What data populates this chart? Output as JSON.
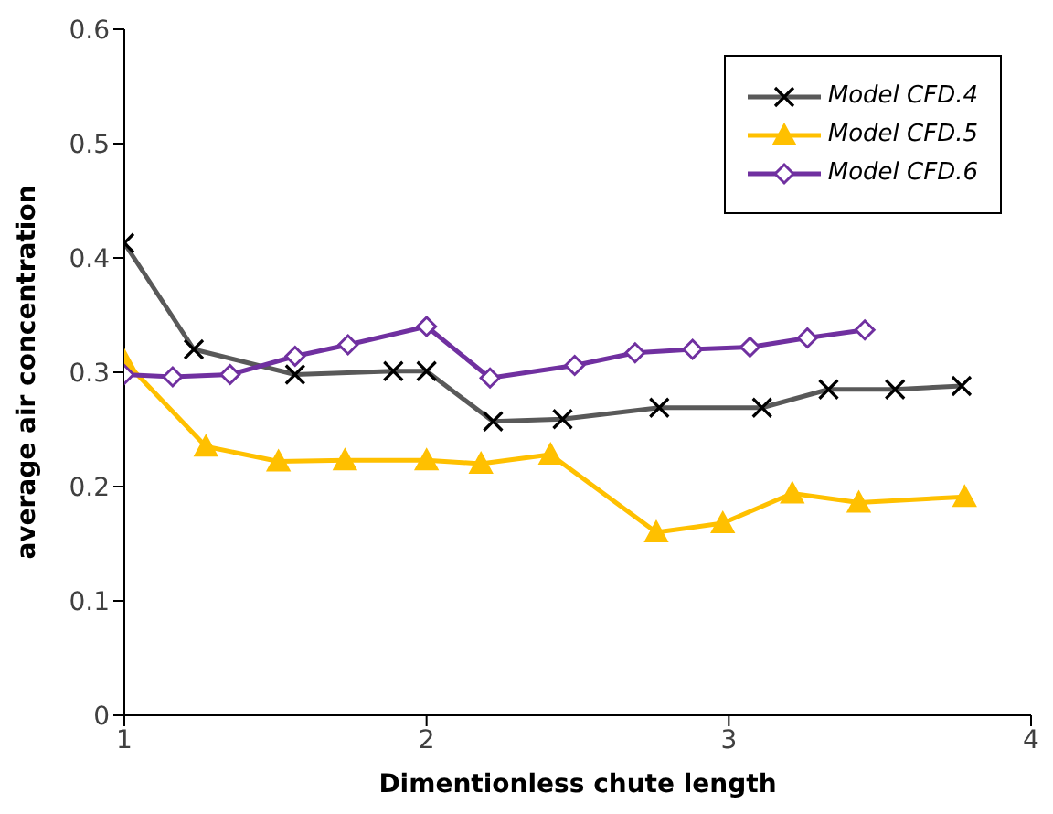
{
  "chart_data": {
    "type": "line",
    "xlabel": "Dimentionless chute length",
    "ylabel": "average air concentration",
    "xlim": [
      1,
      4
    ],
    "xticks": [
      1,
      2,
      3,
      4
    ],
    "ylim": [
      0,
      0.6
    ],
    "yticks": [
      0,
      0.1,
      0.2,
      0.3,
      0.4,
      0.5,
      0.6
    ],
    "grid": false,
    "legend": "top right",
    "line_style": "solid",
    "series": [
      {
        "name": "Model CFD.4",
        "color": "#595959",
        "marker": "cross",
        "x": [
          1,
          1.23,
          1.565,
          1.89,
          2.0,
          2.22,
          2.45,
          2.77,
          3.11,
          3.33,
          3.55,
          3.77
        ],
        "values": [
          0.413,
          0.32,
          0.298,
          0.301,
          0.301,
          0.257,
          0.259,
          0.269,
          0.269,
          0.285,
          0.285,
          0.288
        ]
      },
      {
        "name": "Model CFD.5",
        "color": "#ffc000",
        "marker": "triangle",
        "x": [
          1,
          1.27,
          1.51,
          1.73,
          2.0,
          2.18,
          2.41,
          2.76,
          2.98,
          3.21,
          3.43,
          3.78
        ],
        "values": [
          0.31,
          0.235,
          0.222,
          0.223,
          0.223,
          0.22,
          0.228,
          0.16,
          0.168,
          0.194,
          0.186,
          0.191
        ]
      },
      {
        "name": "Model CFD.6",
        "color": "#7030a0",
        "marker": "diamond",
        "x": [
          1,
          1.16,
          1.35,
          1.565,
          1.74,
          2.0,
          2.21,
          2.49,
          2.69,
          2.88,
          3.07,
          3.26,
          3.45
        ],
        "values": [
          0.298,
          0.296,
          0.298,
          0.314,
          0.324,
          0.34,
          0.295,
          0.306,
          0.317,
          0.32,
          0.322,
          0.33,
          0.337
        ]
      }
    ]
  }
}
